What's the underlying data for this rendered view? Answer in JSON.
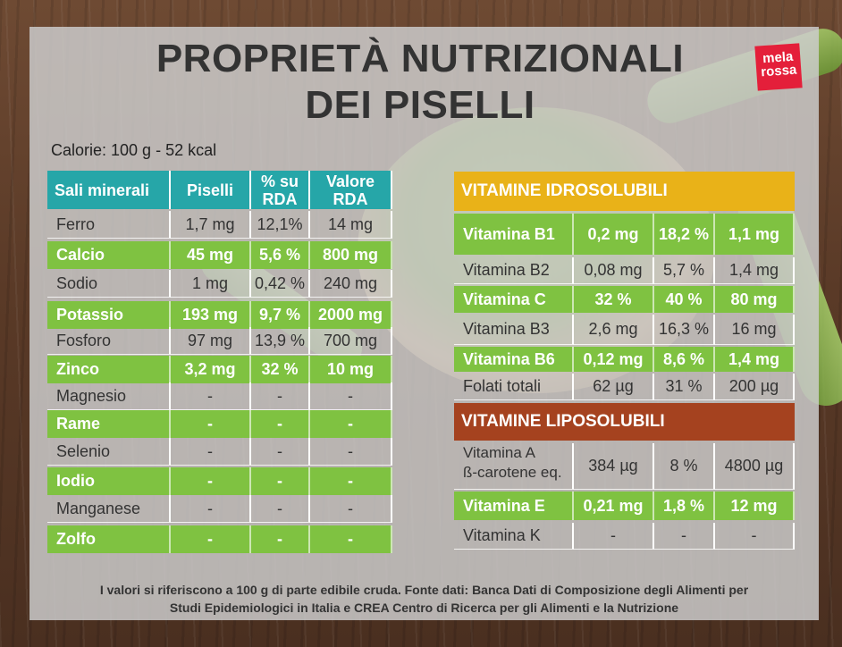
{
  "title_line1": "PROPRIETÀ NUTRIZIONALI",
  "title_line2": "DEI PISELLI",
  "logo_line1": "mela",
  "logo_line2": "rossa",
  "calories": "Calorie: 100 g - 52 kcal",
  "minerals": {
    "headers": [
      "Sali minerali",
      "Piselli",
      "% su RDA",
      "Valore RDA"
    ],
    "rows": [
      {
        "name": "Ferro",
        "piselli": "1,7 mg",
        "rda_pct": "12,1%",
        "rda": "14 mg"
      },
      {
        "name": "Calcio",
        "piselli": "45 mg",
        "rda_pct": "5,6 %",
        "rda": "800 mg"
      },
      {
        "name": "Sodio",
        "piselli": "1 mg",
        "rda_pct": "0,42 %",
        "rda": "240 mg"
      },
      {
        "name": "Potassio",
        "piselli": "193 mg",
        "rda_pct": "9,7 %",
        "rda": "2000 mg"
      },
      {
        "name": "Fosforo",
        "piselli": "97 mg",
        "rda_pct": "13,9 %",
        "rda": "700 mg"
      },
      {
        "name": "Zinco",
        "piselli": "3,2 mg",
        "rda_pct": "32 %",
        "rda": "10 mg"
      },
      {
        "name": "Magnesio",
        "piselli": "-",
        "rda_pct": "-",
        "rda": "-"
      },
      {
        "name": "Rame",
        "piselli": "-",
        "rda_pct": "-",
        "rda": "-"
      },
      {
        "name": "Selenio",
        "piselli": "-",
        "rda_pct": "-",
        "rda": "-"
      },
      {
        "name": "Iodio",
        "piselli": "-",
        "rda_pct": "-",
        "rda": "-"
      },
      {
        "name": "Manganese",
        "piselli": "-",
        "rda_pct": "-",
        "rda": "-"
      },
      {
        "name": "Zolfo",
        "piselli": "-",
        "rda_pct": "-",
        "rda": "-"
      }
    ]
  },
  "vit_idro": {
    "title": "VITAMINE IDROSOLUBILI",
    "rows": [
      {
        "name": "Vitamina B1",
        "value": "0,2 mg",
        "pct": "18,2 %",
        "rda": "1,1 mg"
      },
      {
        "name": "Vitamina B2",
        "value": "0,08 mg",
        "pct": "5,7 %",
        "rda": "1,4 mg"
      },
      {
        "name": "Vitamina C",
        "value": "32 %",
        "pct": "40 %",
        "rda": "80 mg"
      },
      {
        "name": "Vitamina B3",
        "value": "2,6 mg",
        "pct": "16,3 %",
        "rda": "16 mg"
      },
      {
        "name": "Vitamina B6",
        "value": "0,12 mg",
        "pct": "8,6 %",
        "rda": "1,4 mg"
      },
      {
        "name": "Folati totali",
        "value": "62 µg",
        "pct": "31 %",
        "rda": "200 µg"
      }
    ]
  },
  "vit_lipo": {
    "title": "VITAMINE LIPOSOLUBILI",
    "rows": [
      {
        "name": "Vitamina A",
        "name2": "ß-carotene eq.",
        "value": "384 µg",
        "pct": "8 %",
        "rda": "4800 µg"
      },
      {
        "name": "Vitamina E",
        "name2": "",
        "value": "0,21 mg",
        "pct": "1,8 %",
        "rda": "12 mg"
      },
      {
        "name": "Vitamina K",
        "name2": "",
        "value": "-",
        "pct": "-",
        "rda": "-"
      }
    ]
  },
  "footer_line1": "I valori si riferiscono a 100 g di parte edibile cruda. Fonte dati: Banca Dati di Composizione degli Alimenti per",
  "footer_line2": "Studi Epidemiologici in Italia e CREA Centro di Ricerca per gli Alimenti e la Nutrizione"
}
